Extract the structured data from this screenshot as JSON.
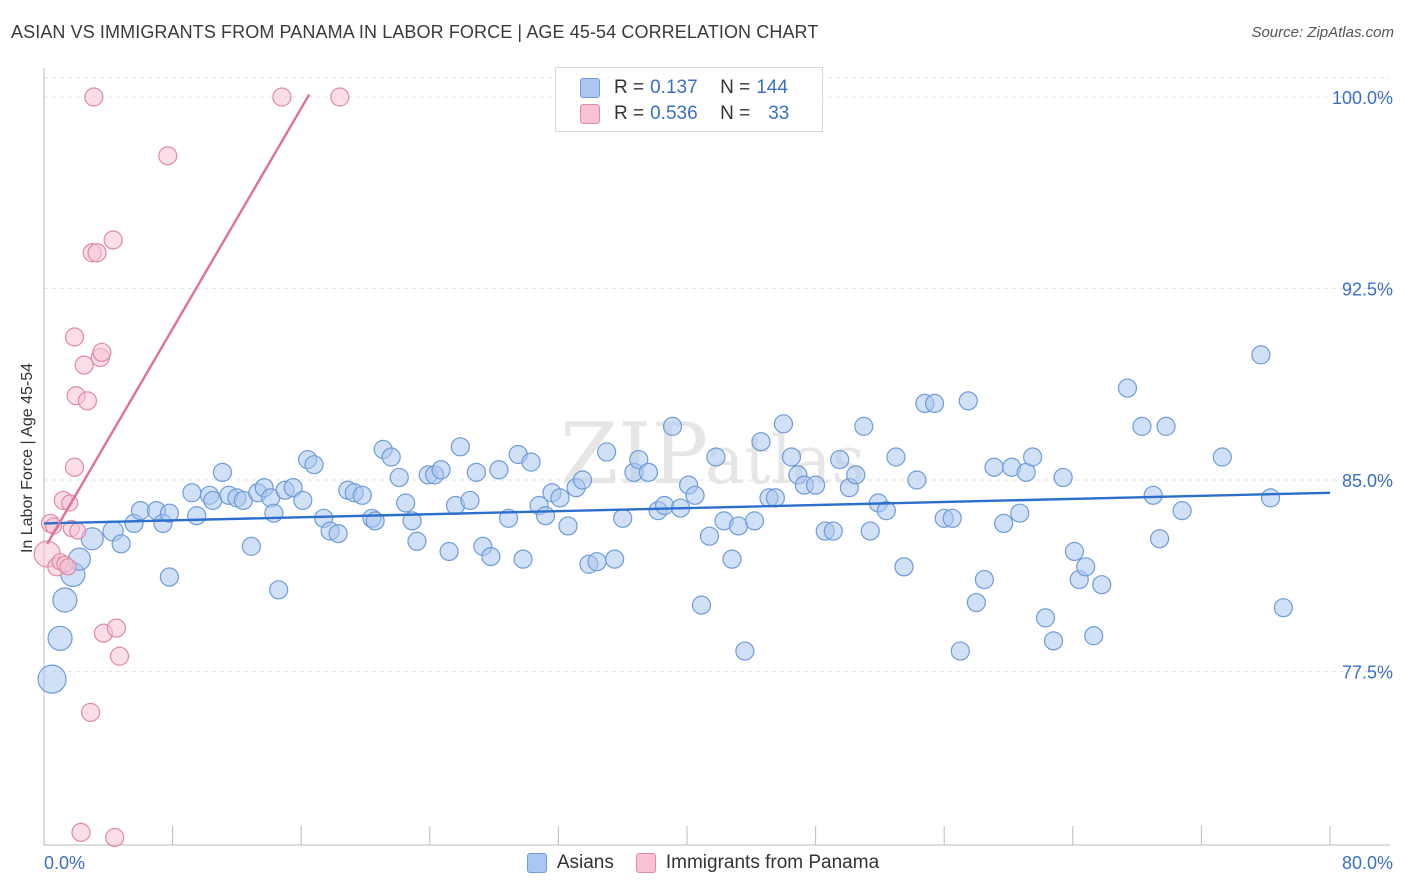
{
  "title": "ASIAN VS IMMIGRANTS FROM PANAMA IN LABOR FORCE | AGE 45-54 CORRELATION CHART",
  "source": "Source: ZipAtlas.com",
  "watermark": {
    "zip": "ZIP",
    "atlas": "atlas"
  },
  "legend": {
    "rows": [
      {
        "r_label": "R = ",
        "r_value": "0.137",
        "n_label": "N = ",
        "n_value": "144",
        "color": "#a9c7f0",
        "border": "#6f9bd8"
      },
      {
        "r_label": "R = ",
        "r_value": "0.536",
        "n_label": "N = ",
        "n_value": "33",
        "color": "#f7c3d2",
        "border": "#e08aa6"
      }
    ]
  },
  "bottom_legend": [
    {
      "label": "Asians",
      "color": "#a9c7f0",
      "border": "#6f9bd8"
    },
    {
      "label": "Immigrants from Panama",
      "color": "#f7c3d2",
      "border": "#e08aa6"
    }
  ],
  "chart_data": {
    "type": "scatter",
    "title": "ASIAN VS IMMIGRANTS FROM PANAMA IN LABOR FORCE | AGE 45-54 CORRELATION CHART",
    "xlabel": "",
    "ylabel": "In Labor Force | Age 45-54",
    "xlim": [
      0,
      80
    ],
    "ylim": [
      70.5,
      101.2
    ],
    "x_tick_labels": [
      "0.0%",
      "80.0%"
    ],
    "y_ticks": [
      77.5,
      85.0,
      92.5,
      100.0
    ],
    "y_tick_labels": [
      "77.5%",
      "85.0%",
      "92.5%",
      "100.0%"
    ],
    "grid": "horizontal dashed",
    "series": [
      {
        "name": "Asians",
        "color": "#a9c7f0",
        "stroke": "#6f9bd8",
        "trend": {
          "color": "#2d6fcc",
          "x": [
            0,
            80
          ],
          "y": [
            83.3,
            84.5
          ]
        },
        "points": [
          [
            0.5,
            77.2,
            14
          ],
          [
            1.0,
            78.8,
            12
          ],
          [
            1.3,
            80.3,
            12
          ],
          [
            1.8,
            81.3,
            12
          ],
          [
            2.2,
            81.9,
            11
          ],
          [
            3.0,
            82.7,
            11
          ],
          [
            4.3,
            83.0,
            10
          ],
          [
            4.8,
            82.5,
            9
          ],
          [
            5.6,
            83.3,
            9
          ],
          [
            6.0,
            83.8,
            9
          ],
          [
            7.0,
            83.8,
            9
          ],
          [
            7.4,
            83.3,
            9
          ],
          [
            7.8,
            83.7,
            9
          ],
          [
            7.8,
            81.2,
            9
          ],
          [
            9.2,
            84.5,
            9
          ],
          [
            9.5,
            83.6,
            9
          ],
          [
            10.3,
            84.4,
            9
          ],
          [
            10.5,
            84.2,
            9
          ],
          [
            11.1,
            85.3,
            9
          ],
          [
            11.5,
            84.4,
            9
          ],
          [
            12.0,
            84.3,
            9
          ],
          [
            12.4,
            84.2,
            9
          ],
          [
            12.9,
            82.4,
            9
          ],
          [
            13.3,
            84.5,
            9
          ],
          [
            13.7,
            84.7,
            9
          ],
          [
            14.1,
            84.3,
            9
          ],
          [
            14.3,
            83.7,
            9
          ],
          [
            14.6,
            80.7,
            9
          ],
          [
            15.0,
            84.6,
            9
          ],
          [
            15.5,
            84.7,
            9
          ],
          [
            16.1,
            84.2,
            9
          ],
          [
            16.4,
            85.8,
            9
          ],
          [
            16.8,
            85.6,
            9
          ],
          [
            17.4,
            83.5,
            9
          ],
          [
            17.8,
            83.0,
            9
          ],
          [
            18.3,
            82.9,
            9
          ],
          [
            18.9,
            84.6,
            9
          ],
          [
            19.3,
            84.5,
            9
          ],
          [
            19.8,
            84.4,
            9
          ],
          [
            20.4,
            83.5,
            9
          ],
          [
            20.6,
            83.4,
            9
          ],
          [
            21.1,
            86.2,
            9
          ],
          [
            21.6,
            85.9,
            9
          ],
          [
            22.1,
            85.1,
            9
          ],
          [
            22.5,
            84.1,
            9
          ],
          [
            22.9,
            83.4,
            9
          ],
          [
            23.2,
            82.6,
            9
          ],
          [
            23.9,
            85.2,
            9
          ],
          [
            24.3,
            85.2,
            9
          ],
          [
            24.7,
            85.4,
            9
          ],
          [
            25.2,
            82.2,
            9
          ],
          [
            25.6,
            84.0,
            9
          ],
          [
            25.9,
            86.3,
            9
          ],
          [
            26.5,
            84.2,
            9
          ],
          [
            26.9,
            85.3,
            9
          ],
          [
            27.3,
            82.4,
            9
          ],
          [
            27.8,
            82.0,
            9
          ],
          [
            28.3,
            85.4,
            9
          ],
          [
            28.9,
            83.5,
            9
          ],
          [
            29.5,
            86.0,
            9
          ],
          [
            29.8,
            81.9,
            9
          ],
          [
            30.3,
            85.7,
            9
          ],
          [
            30.8,
            84.0,
            9
          ],
          [
            31.2,
            83.6,
            9
          ],
          [
            31.6,
            84.5,
            9
          ],
          [
            32.1,
            84.3,
            9
          ],
          [
            32.6,
            83.2,
            9
          ],
          [
            33.1,
            84.7,
            9
          ],
          [
            33.5,
            85.0,
            9
          ],
          [
            33.9,
            81.7,
            9
          ],
          [
            34.4,
            81.8,
            9
          ],
          [
            35.0,
            86.1,
            9
          ],
          [
            35.5,
            81.9,
            9
          ],
          [
            36.0,
            83.5,
            9
          ],
          [
            36.7,
            85.3,
            9
          ],
          [
            37.0,
            85.8,
            9
          ],
          [
            37.6,
            85.3,
            9
          ],
          [
            38.2,
            83.8,
            9
          ],
          [
            38.6,
            84.0,
            9
          ],
          [
            39.1,
            87.1,
            9
          ],
          [
            39.6,
            83.9,
            9
          ],
          [
            40.1,
            84.8,
            9
          ],
          [
            40.5,
            84.4,
            9
          ],
          [
            40.9,
            80.1,
            9
          ],
          [
            41.4,
            82.8,
            9
          ],
          [
            41.8,
            85.9,
            9
          ],
          [
            42.3,
            83.4,
            9
          ],
          [
            42.8,
            81.9,
            9
          ],
          [
            43.2,
            83.2,
            9
          ],
          [
            43.6,
            78.3,
            9
          ],
          [
            44.2,
            83.4,
            9
          ],
          [
            44.6,
            86.5,
            9
          ],
          [
            45.1,
            84.3,
            9
          ],
          [
            45.5,
            84.3,
            9
          ],
          [
            46.0,
            87.2,
            9
          ],
          [
            46.5,
            85.9,
            9
          ],
          [
            46.9,
            85.2,
            9
          ],
          [
            47.3,
            84.8,
            9
          ],
          [
            48.0,
            84.8,
            9
          ],
          [
            48.6,
            83.0,
            9
          ],
          [
            49.1,
            83.0,
            9
          ],
          [
            49.5,
            85.8,
            9
          ],
          [
            50.1,
            84.7,
            9
          ],
          [
            50.5,
            85.2,
            9
          ],
          [
            51.0,
            87.1,
            9
          ],
          [
            51.4,
            83.0,
            9
          ],
          [
            51.9,
            84.1,
            9
          ],
          [
            52.4,
            83.8,
            9
          ],
          [
            53.0,
            85.9,
            9
          ],
          [
            53.5,
            81.6,
            9
          ],
          [
            54.3,
            85.0,
            9
          ],
          [
            54.8,
            88.0,
            9
          ],
          [
            55.4,
            88.0,
            9
          ],
          [
            56.0,
            83.5,
            9
          ],
          [
            56.5,
            83.5,
            9
          ],
          [
            57.0,
            78.3,
            9
          ],
          [
            57.5,
            88.1,
            9
          ],
          [
            58.0,
            80.2,
            9
          ],
          [
            58.5,
            81.1,
            9
          ],
          [
            59.1,
            85.5,
            9
          ],
          [
            59.7,
            83.3,
            9
          ],
          [
            60.2,
            85.5,
            9
          ],
          [
            60.7,
            83.7,
            9
          ],
          [
            61.1,
            85.3,
            9
          ],
          [
            61.5,
            85.9,
            9
          ],
          [
            62.3,
            79.6,
            9
          ],
          [
            62.8,
            78.7,
            9
          ],
          [
            63.4,
            85.1,
            9
          ],
          [
            64.1,
            82.2,
            9
          ],
          [
            64.4,
            81.1,
            9
          ],
          [
            64.8,
            81.6,
            9
          ],
          [
            65.3,
            78.9,
            9
          ],
          [
            65.8,
            80.9,
            9
          ],
          [
            67.4,
            88.6,
            9
          ],
          [
            68.3,
            87.1,
            9
          ],
          [
            69.0,
            84.4,
            9
          ],
          [
            69.4,
            82.7,
            9
          ],
          [
            69.8,
            87.1,
            9
          ],
          [
            70.8,
            83.8,
            9
          ],
          [
            73.3,
            85.9,
            9
          ],
          [
            75.7,
            89.9,
            9
          ],
          [
            76.3,
            84.3,
            9
          ],
          [
            77.1,
            80.0,
            9
          ]
        ]
      },
      {
        "name": "Immigrants from Panama",
        "color": "#f7c3d2",
        "stroke": "#e08aa6",
        "trend": {
          "color": "#e0709a",
          "x": [
            0.2,
            16.5
          ],
          "y": [
            82.5,
            100.1
          ]
        },
        "points": [
          [
            0.2,
            82.1,
            13
          ],
          [
            0.4,
            83.3,
            9
          ],
          [
            0.6,
            83.2,
            8
          ],
          [
            0.8,
            81.6,
            9
          ],
          [
            1.0,
            81.8,
            8
          ],
          [
            1.2,
            84.2,
            9
          ],
          [
            1.3,
            81.7,
            8
          ],
          [
            1.5,
            81.6,
            8
          ],
          [
            1.6,
            84.1,
            8
          ],
          [
            1.7,
            83.1,
            8
          ],
          [
            1.9,
            90.6,
            9
          ],
          [
            1.9,
            85.5,
            9
          ],
          [
            2.0,
            88.3,
            9
          ],
          [
            2.1,
            83.0,
            8
          ],
          [
            2.3,
            71.2,
            9
          ],
          [
            2.5,
            89.5,
            9
          ],
          [
            2.7,
            88.1,
            9
          ],
          [
            2.9,
            75.9,
            9
          ],
          [
            3.0,
            93.9,
            9
          ],
          [
            3.1,
            100.0,
            9
          ],
          [
            3.3,
            93.9,
            9
          ],
          [
            3.5,
            89.8,
            9
          ],
          [
            3.6,
            90.0,
            9
          ],
          [
            3.7,
            79.0,
            9
          ],
          [
            4.3,
            94.4,
            9
          ],
          [
            4.4,
            71.0,
            9
          ],
          [
            4.5,
            79.2,
            9
          ],
          [
            4.7,
            78.1,
            9
          ],
          [
            7.7,
            97.7,
            9
          ],
          [
            14.8,
            100.0,
            9
          ],
          [
            18.4,
            100.0,
            9
          ]
        ]
      }
    ]
  }
}
